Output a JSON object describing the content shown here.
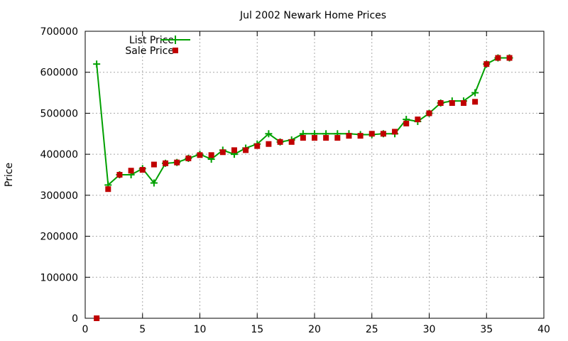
{
  "chart_data": {
    "type": "line",
    "title": "Jul 2002 Newark Home Prices",
    "xlabel": "",
    "ylabel": "Price",
    "xlim": [
      0,
      40
    ],
    "ylim": [
      0,
      700000
    ],
    "xticks": [
      "0",
      "5",
      "10",
      "15",
      "20",
      "25",
      "30",
      "35",
      "40"
    ],
    "yticks": [
      "0",
      "100000",
      "200000",
      "300000",
      "400000",
      "500000",
      "600000",
      "700000"
    ],
    "grid": true,
    "legend_position": "top-left",
    "series": [
      {
        "name": "List Price",
        "style": "line-with-plus-markers",
        "color": "#00a000",
        "x": [
          1,
          2,
          3,
          4,
          5,
          6,
          7,
          8,
          9,
          10,
          11,
          12,
          13,
          14,
          15,
          16,
          17,
          18,
          19,
          20,
          21,
          22,
          23,
          24,
          25,
          26,
          27,
          28,
          29,
          30,
          31,
          32,
          33,
          34,
          35,
          36,
          37
        ],
        "y": [
          620000,
          325000,
          350000,
          350000,
          365000,
          330000,
          378000,
          380000,
          390000,
          400000,
          388000,
          410000,
          400000,
          415000,
          425000,
          450000,
          430000,
          435000,
          450000,
          450000,
          450000,
          450000,
          450000,
          448000,
          448000,
          450000,
          450000,
          485000,
          480000,
          500000,
          525000,
          530000,
          530000,
          550000,
          620000,
          635000,
          635000
        ]
      },
      {
        "name": "Sale Price",
        "style": "square-markers",
        "color": "#c00000",
        "x": [
          1,
          2,
          3,
          4,
          5,
          6,
          7,
          8,
          9,
          10,
          11,
          12,
          13,
          14,
          15,
          16,
          17,
          18,
          19,
          20,
          21,
          22,
          23,
          24,
          25,
          26,
          27,
          28,
          29,
          30,
          31,
          32,
          33,
          34,
          35,
          36,
          37
        ],
        "y": [
          0,
          315000,
          350000,
          360000,
          362000,
          375000,
          378000,
          380000,
          390000,
          398000,
          398000,
          405000,
          410000,
          410000,
          420000,
          425000,
          430000,
          430000,
          440000,
          440000,
          440000,
          440000,
          445000,
          445000,
          450000,
          450000,
          455000,
          475000,
          485000,
          500000,
          525000,
          525000,
          525000,
          528000,
          620000,
          635000,
          635000
        ]
      }
    ]
  }
}
